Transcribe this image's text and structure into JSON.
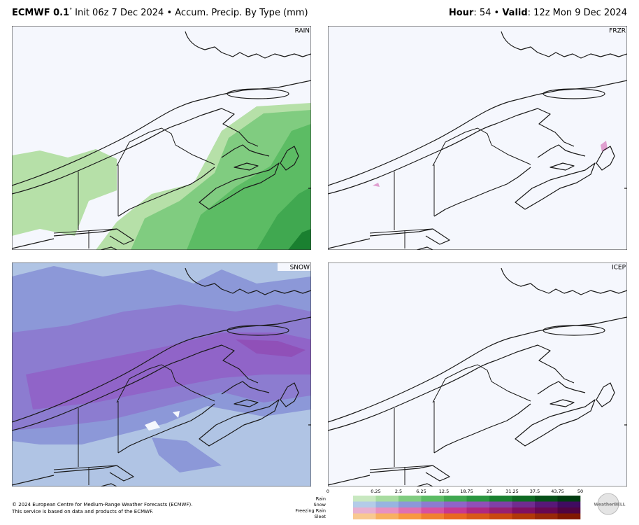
{
  "header": {
    "model": "ECMWF 0.1",
    "degree": "°",
    "title": "Init 06z 7 Dec 2024 • Accum. Precip. By Type (mm)",
    "hour_label": "Hour",
    "hour_value": ": 54 • ",
    "valid_label": "Valid",
    "valid_value": ": 12z Mon 9 Dec 2024"
  },
  "panels": [
    {
      "label": "RAIN"
    },
    {
      "label": "FRZR"
    },
    {
      "label": "SNOW"
    },
    {
      "label": "ICEP"
    }
  ],
  "colorbar": {
    "ticks": [
      "0",
      "0.25",
      "2.5",
      "6.25",
      "12.5",
      "18.75",
      "25",
      "31.25",
      "37.5",
      "43.75",
      "50"
    ],
    "rows": [
      {
        "label": "Rain",
        "colors": [
          "#c8e8c0",
          "#a8dca0",
          "#80cc80",
          "#5cbc64",
          "#40a850",
          "#2a9640",
          "#1a8030",
          "#0e6a22",
          "#065018",
          "#003c10"
        ]
      },
      {
        "label": "Snow",
        "colors": [
          "#b4cce8",
          "#98b4e0",
          "#8c98d8",
          "#8c7cd0",
          "#9064c8",
          "#9050b8",
          "#8040a8",
          "#702c90",
          "#581878",
          "#400c60"
        ]
      },
      {
        "label": "Freezing Rain",
        "colors": [
          "#e8b0d0",
          "#e890c0",
          "#e070b0",
          "#d850a0",
          "#c83890",
          "#b02880",
          "#982070",
          "#801060",
          "#680850",
          "#500440"
        ]
      },
      {
        "label": "Sleet",
        "colors": [
          "#f8c890",
          "#f8b060",
          "#f89840",
          "#f08030",
          "#e86820",
          "#d85818",
          "#c84810",
          "#b03808",
          "#982808",
          "#801800"
        ]
      }
    ]
  },
  "footer": {
    "line1": "© 2024 European Centre for Medium-Range Weather Forecasts (ECMWF).",
    "line2": "This service is based on data and products of the ECMWF.",
    "logo": "WeatherBELL"
  }
}
